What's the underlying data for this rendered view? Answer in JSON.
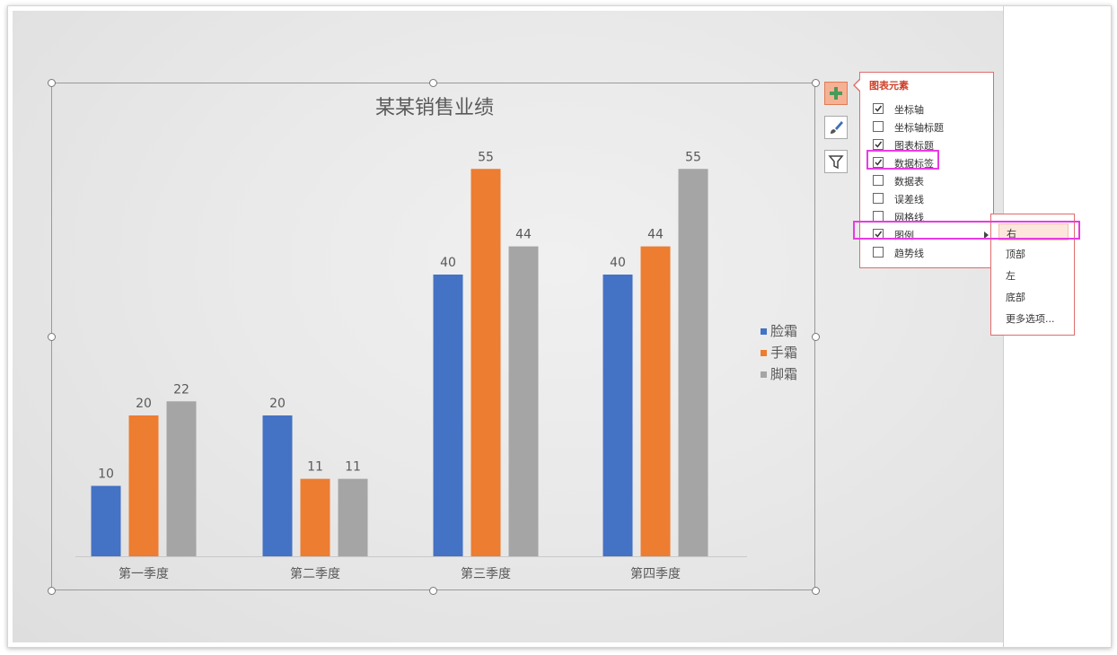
{
  "chart_data": {
    "type": "bar",
    "title": "某某销售业绩",
    "categories": [
      "第一季度",
      "第二季度",
      "第三季度",
      "第四季度"
    ],
    "series": [
      {
        "name": "脸霜",
        "values": [
          10,
          20,
          40,
          40
        ],
        "color": "#4472c4"
      },
      {
        "name": "手霜",
        "values": [
          20,
          11,
          55,
          44
        ],
        "color": "#ed7d31"
      },
      {
        "name": "脚霜",
        "values": [
          22,
          11,
          44,
          55
        ],
        "color": "#a5a5a5"
      }
    ],
    "xlabel": "",
    "ylabel": "",
    "ylim": [
      0,
      60
    ],
    "grid": false,
    "data_labels": true,
    "legend_position": "right"
  },
  "chart_tools": {
    "add_element_icon": "plus-icon",
    "style_icon": "brush-icon",
    "filter_icon": "filter-icon"
  },
  "chart_elements_panel": {
    "title": "图表元素",
    "items": [
      {
        "label": "坐标轴",
        "checked": true
      },
      {
        "label": "坐标轴标题",
        "checked": false
      },
      {
        "label": "图表标题",
        "checked": true
      },
      {
        "label": "数据标签",
        "checked": true
      },
      {
        "label": "数据表",
        "checked": false
      },
      {
        "label": "误差线",
        "checked": false
      },
      {
        "label": "网格线",
        "checked": false
      },
      {
        "label": "图例",
        "checked": true,
        "has_submenu": true
      },
      {
        "label": "趋势线",
        "checked": false
      }
    ]
  },
  "legend_submenu": {
    "items": [
      "右",
      "顶部",
      "左",
      "底部",
      "更多选项..."
    ],
    "selected": "右"
  },
  "colors": {
    "highlight": "#e83be3",
    "panel_border": "#e06c6c",
    "panel_title": "#d0402a",
    "active_tool": "#f5b194"
  }
}
